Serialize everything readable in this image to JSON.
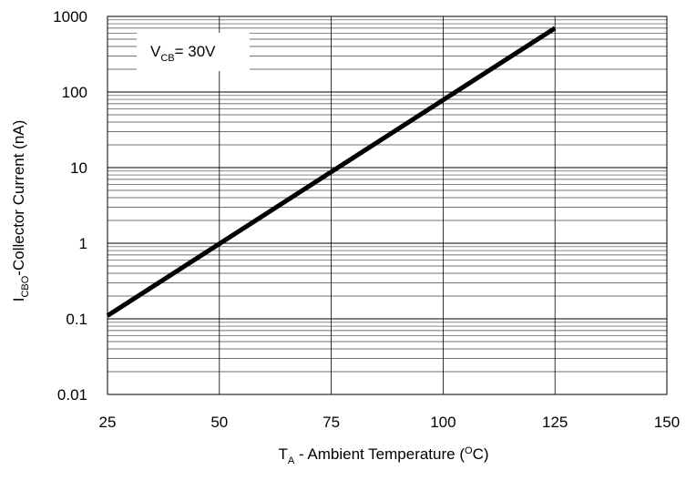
{
  "chart_data": {
    "type": "line",
    "series": [
      {
        "x": [
          25,
          125
        ],
        "values": [
          0.11,
          700
        ],
        "color": "#000000"
      }
    ],
    "xlim": [
      25,
      150
    ],
    "ylim": [
      0.01,
      1000
    ],
    "yscale": "log",
    "grid": true,
    "xticks": [
      "25",
      "50",
      "75",
      "100",
      "125",
      "150"
    ],
    "yticks": [
      "0.01",
      "0.1",
      "1",
      "10",
      "100",
      "1000"
    ],
    "xlabel": {
      "prefix": "T",
      "subscript": "A",
      "mid": " - Ambient Temperature (",
      "superscript": "O",
      "suffix": "C)"
    },
    "ylabel": {
      "prefix": "I",
      "subscript": "CBO",
      "suffix": "-Collector Current (nA)"
    },
    "annotation": {
      "prefix": "V",
      "subscript": "CB",
      "suffix": "= 30V"
    }
  }
}
